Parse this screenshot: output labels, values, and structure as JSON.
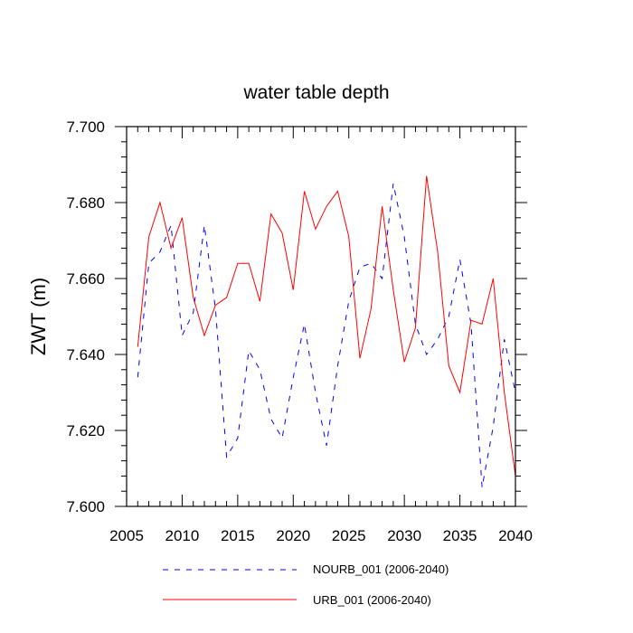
{
  "chart_data": {
    "type": "line",
    "title": "water table depth",
    "xlabel": "",
    "ylabel": "ZWT  (m)",
    "xlim": [
      2005,
      2040
    ],
    "ylim": [
      7.6,
      7.7
    ],
    "x_ticks": [
      "2005",
      "2010",
      "2015",
      "2020",
      "2025",
      "2030",
      "2035",
      "2040"
    ],
    "y_ticks": [
      "7.600",
      "7.620",
      "7.640",
      "7.660",
      "7.680",
      "7.700"
    ],
    "grid": false,
    "legend_position": "bottom-center",
    "x": [
      2006,
      2007,
      2008,
      2009,
      2010,
      2011,
      2012,
      2013,
      2014,
      2015,
      2016,
      2017,
      2018,
      2019,
      2020,
      2021,
      2022,
      2023,
      2024,
      2025,
      2026,
      2027,
      2028,
      2029,
      2030,
      2031,
      2032,
      2033,
      2034,
      2035,
      2036,
      2037,
      2038,
      2039,
      2040
    ],
    "series": [
      {
        "name": "NOURB_001 (2006-2040)",
        "color": "#0000ff",
        "style": "dashed",
        "values": [
          7.634,
          7.664,
          7.667,
          7.674,
          7.645,
          7.651,
          7.674,
          7.652,
          7.613,
          7.618,
          7.641,
          7.636,
          7.623,
          7.618,
          7.634,
          7.648,
          7.63,
          7.616,
          7.637,
          7.654,
          7.663,
          7.664,
          7.66,
          7.685,
          7.671,
          7.648,
          7.64,
          7.644,
          7.65,
          7.665,
          7.648,
          7.605,
          7.621,
          7.644,
          7.63
        ]
      },
      {
        "name": "URB_001 (2006-2040)",
        "color": "#ff0000",
        "style": "solid",
        "values": [
          7.642,
          7.671,
          7.68,
          7.668,
          7.676,
          7.655,
          7.645,
          7.653,
          7.655,
          7.664,
          7.664,
          7.654,
          7.677,
          7.672,
          7.657,
          7.683,
          7.673,
          7.679,
          7.683,
          7.671,
          7.639,
          7.652,
          7.679,
          7.657,
          7.638,
          7.647,
          7.687,
          7.667,
          7.637,
          7.63,
          7.649,
          7.648,
          7.66,
          7.63,
          7.608
        ]
      }
    ]
  }
}
